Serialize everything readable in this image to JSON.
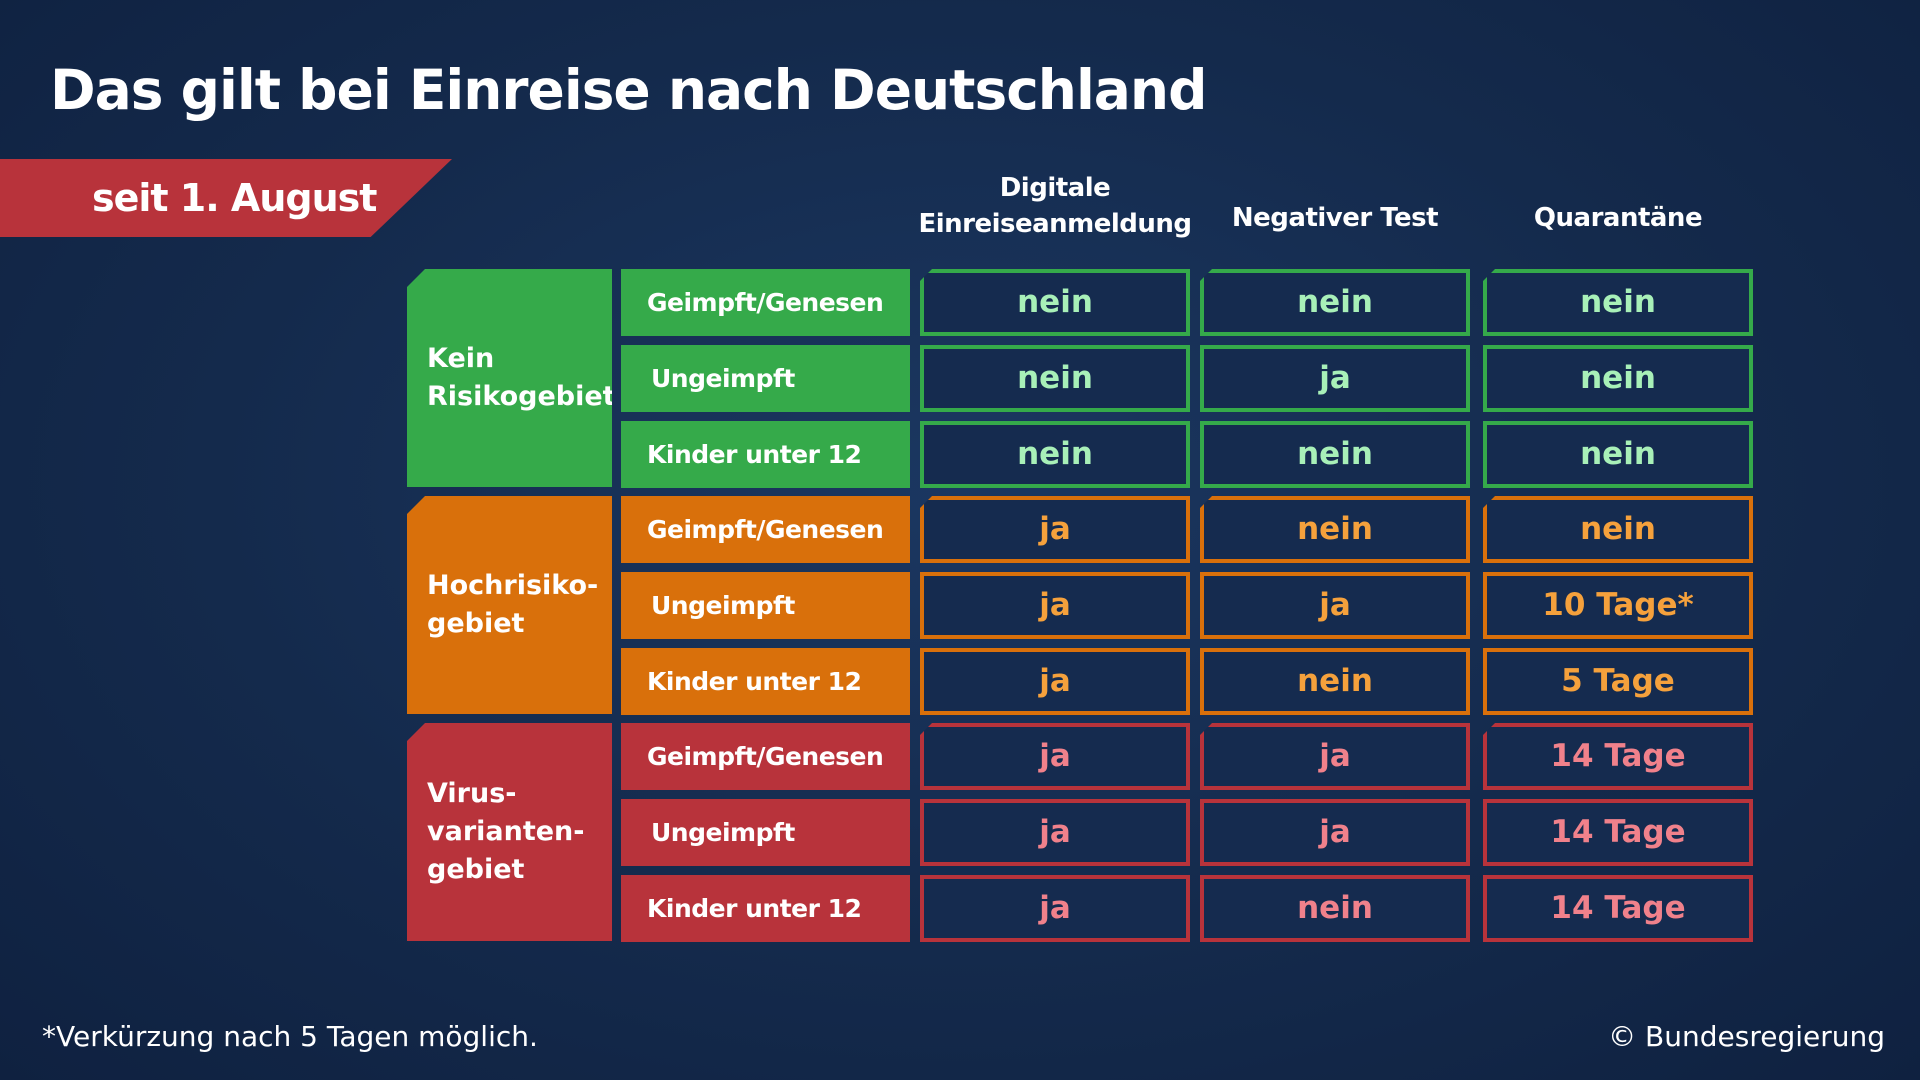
{
  "title": "Das gilt bei Einreise nach Deutschland",
  "date_label": "seit 1. August",
  "columns": [
    "Digitale\nEinreiseanmeldung",
    "Negativer Test",
    "Quarantäne"
  ],
  "colors": {
    "green": "#35aa4a",
    "orange": "#d9700b",
    "red": "#b8333b",
    "green_text": "#a8f0b8",
    "orange_text": "#f5a13c",
    "red_text": "#f0818b"
  },
  "groups": [
    {
      "label": "Kein\nRisikogebiet",
      "color": "green",
      "rows": [
        {
          "sub": "Geimpft/Genesen",
          "values": [
            "nein",
            "nein",
            "nein"
          ]
        },
        {
          "sub": "Ungeimpft",
          "values": [
            "nein",
            "ja",
            "nein"
          ]
        },
        {
          "sub": "Kinder unter 12",
          "values": [
            "nein",
            "nein",
            "nein"
          ]
        }
      ]
    },
    {
      "label": "Hochrisiko-\ngebiet",
      "color": "orange",
      "rows": [
        {
          "sub": "Geimpft/Genesen",
          "values": [
            "ja",
            "nein",
            "nein"
          ]
        },
        {
          "sub": "Ungeimpft",
          "values": [
            "ja",
            "ja",
            "10 Tage*"
          ]
        },
        {
          "sub": "Kinder unter 12",
          "values": [
            "ja",
            "nein",
            "5 Tage"
          ]
        }
      ]
    },
    {
      "label": "Virus-\nvarianten-\ngebiet",
      "color": "red",
      "rows": [
        {
          "sub": "Geimpft/Genesen",
          "values": [
            "ja",
            "ja",
            "14 Tage"
          ]
        },
        {
          "sub": "Ungeimpft",
          "values": [
            "ja",
            "ja",
            "14 Tage"
          ]
        },
        {
          "sub": "Kinder unter 12",
          "values": [
            "ja",
            "nein",
            "14 Tage"
          ]
        }
      ]
    }
  ],
  "footnote": "*Verkürzung nach 5 Tagen möglich.",
  "copyright": "© Bundesregierung"
}
